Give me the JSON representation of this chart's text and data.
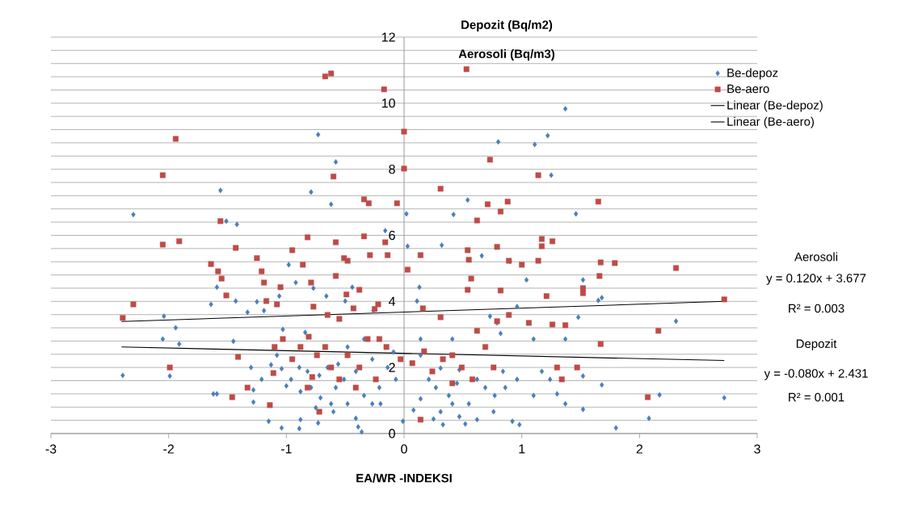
{
  "chart_data": {
    "type": "scatter",
    "title": "Depozit (Bq/m2)",
    "subtitle": "Aerosoli (Bq/m3)",
    "xlabel": "EA/WR -INDEKSI",
    "annotations": [
      "Aerosoli",
      "y = 0.120x + 3.677",
      "R² = 0.003",
      "Depozit",
      "y = -0.080x + 2.431",
      "R² = 0.001"
    ],
    "xlim": [
      -3,
      3
    ],
    "ylim": [
      0,
      12
    ],
    "xticks": [
      -3,
      -2,
      -1,
      0,
      1,
      2,
      3
    ],
    "yticks": [
      0,
      {
        "value": 0.4,
        "label": null
      },
      {
        "value": 0.8,
        "label": null
      },
      {
        "value": 1.2,
        "label": null
      },
      {
        "value": 1.6,
        "label": null
      },
      2,
      {
        "value": 2.4,
        "label": null
      },
      {
        "value": 2.8,
        "label": null
      },
      {
        "value": 3.2,
        "label": null
      },
      {
        "value": 3.6,
        "label": null
      },
      4,
      {
        "value": 4.4,
        "label": null
      },
      {
        "value": 4.8,
        "label": null
      },
      {
        "value": 5.2,
        "label": null
      },
      {
        "value": 5.6,
        "label": null
      },
      6,
      {
        "value": 6.4,
        "label": null
      },
      {
        "value": 6.8,
        "label": null
      },
      {
        "value": 7.2,
        "label": null
      },
      {
        "value": 7.6,
        "label": null
      },
      8,
      {
        "value": 8.4,
        "label": null
      },
      {
        "value": 8.8,
        "label": null
      },
      {
        "value": 9.2,
        "label": null
      },
      {
        "value": 9.6,
        "label": null
      },
      10,
      {
        "value": 10.4,
        "label": null
      },
      {
        "value": 10.8,
        "label": null
      },
      {
        "value": 11.2,
        "label": null
      },
      {
        "value": 11.6,
        "label": null
      },
      12
    ],
    "grid": "y",
    "legend": "right",
    "series": [
      {
        "name": "Be-depoz",
        "marker": "diamond",
        "color": "#4a7ebb",
        "x": [
          -2.39,
          -2.3,
          -2.05,
          -2.04,
          -1.99,
          -1.94,
          -1.91,
          -1.64,
          -1.59,
          -1.62,
          -1.59,
          -1.56,
          -1.51,
          -1.42,
          -1.43,
          -1.45,
          -1.33,
          -1.28,
          -1.28,
          -1.25,
          -1.19,
          -1.15,
          -1.08,
          -1.04,
          -1.06,
          -1.03,
          -1.04,
          -0.98,
          -0.92,
          -0.89,
          -0.88,
          -0.88,
          -0.84,
          -0.77,
          -0.73,
          -0.79,
          -0.73,
          -0.71,
          -0.66,
          -0.62,
          -0.6,
          -0.58,
          -0.56,
          -0.5,
          -0.44,
          -0.39,
          -0.41,
          -0.36,
          -0.26,
          -0.2,
          -0.16,
          -0.09,
          -0.01,
          0.02,
          0.03,
          0.08,
          0.11,
          0.13,
          0.14,
          0.32,
          0.33,
          0.25,
          0.31,
          0.42,
          0.47,
          0.47,
          0.52,
          0.54,
          0.66,
          0.73,
          0.77,
          0.8,
          0.84,
          0.82,
          0.9,
          0.92,
          0.98,
          1.04,
          1.11,
          1.22,
          1.25,
          1.3,
          1.37,
          1.46,
          1.48,
          1.52,
          1.52,
          1.52,
          1.65,
          1.68,
          1.68,
          1.8,
          2.08,
          2.17,
          2.31,
          2.72,
          -0.96,
          -0.82,
          -0.72,
          -0.65,
          -0.58,
          -0.51,
          -0.41,
          -0.34,
          -0.27,
          -0.21,
          -0.48,
          -0.62,
          -0.75,
          -0.79,
          -0.89,
          -1.0,
          -1.13,
          -1.21,
          -1.3,
          -0.48,
          -0.34,
          -0.27,
          -0.14,
          -0.07,
          0.14,
          0.21,
          0.27,
          0.38,
          0.45,
          0.55,
          0.62,
          0.69,
          0.76,
          0.86,
          0.96,
          1.1,
          1.17,
          1.24,
          1.37,
          0.31,
          0.41,
          0.62,
          1.37,
          1.1,
          0.96,
          0.79,
          0.41,
          0.14
        ],
        "values": [
          1.76,
          6.63,
          2.86,
          3.55,
          1.74,
          3.2,
          2.71,
          3.91,
          1.2,
          1.2,
          4.43,
          7.36,
          6.43,
          6.33,
          4.01,
          2.79,
          3.67,
          0.95,
          1.32,
          3.99,
          3.72,
          0.37,
          2.37,
          0.17,
          4.16,
          3.15,
          1.96,
          5.11,
          4.57,
          0.15,
          0.42,
          1.27,
          3.06,
          4.4,
          9.05,
          7.31,
          0.32,
          1.08,
          4.16,
          6.94,
          0.66,
          8.22,
          2.1,
          4.01,
          4.43,
          0.2,
          0.46,
          0.05,
          3.72,
          0.9,
          6.14,
          2.47,
          0.37,
          6.65,
          5.67,
          0.71,
          4.01,
          4.43,
          1.05,
          5.7,
          0.27,
          0.44,
          1.98,
          6.63,
          1.93,
          0.51,
          0.29,
          7.07,
          5.38,
          3.55,
          1.15,
          8.83,
          1.88,
          3.03,
          5.21,
          0.37,
          0.27,
          4.65,
          8.75,
          9.02,
          7.82,
          1.2,
          9.83,
          6.65,
          3.52,
          4.65,
          1.74,
          0.73,
          4.03,
          4.11,
          1.47,
          0.17,
          0.46,
          1.17,
          3.4,
          1.08,
          1.64,
          1.88,
          1.76,
          2.0,
          1.39,
          1.64,
          1.88,
          1.15,
          0.9,
          1.39,
          0.9,
          0.9,
          0.78,
          1.39,
          2.0,
          1.44,
          2.08,
          1.64,
          2.0,
          2.62,
          2.86,
          2.25,
          2.0,
          1.64,
          2.37,
          1.64,
          1.39,
          1.15,
          1.52,
          0.9,
          1.64,
          1.39,
          0.66,
          1.39,
          1.64,
          1.15,
          1.88,
          1.64,
          0.9,
          0.66,
          0.9,
          0.42,
          2.86,
          2.86,
          3.84,
          3.35,
          2.86,
          2.86
        ]
      },
      {
        "name": "Be-aero",
        "marker": "square",
        "color": "#be4b48",
        "x": [
          -2.39,
          -2.3,
          -1.94,
          -2.05,
          -2.05,
          -1.91,
          -1.99,
          -1.64,
          -1.58,
          -1.55,
          -1.56,
          -1.51,
          -1.43,
          -1.41,
          -1.46,
          -1.33,
          -1.25,
          -1.21,
          -1.19,
          -1.17,
          -1.08,
          -1.05,
          -1.14,
          -1.1,
          -1.11,
          -0.95,
          -0.86,
          -0.82,
          -0.81,
          -0.79,
          -0.77,
          -0.78,
          -0.67,
          -0.62,
          -0.6,
          -0.58,
          -0.58,
          -0.51,
          -0.48,
          -0.49,
          -0.43,
          -0.38,
          -0.34,
          -0.3,
          -0.34,
          -0.29,
          -0.25,
          -0.22,
          -0.16,
          -0.14,
          -0.06,
          -0.17,
          0.0,
          0.0,
          0.03,
          0.14,
          0.16,
          0.31,
          0.31,
          0.53,
          0.54,
          0.55,
          0.57,
          0.54,
          0.62,
          0.71,
          0.73,
          0.82,
          0.88,
          0.79,
          0.79,
          0.89,
          0.82,
          1.0,
          1.14,
          1.17,
          1.17,
          1.14,
          1.26,
          1.21,
          1.26,
          1.37,
          1.52,
          1.52,
          1.47,
          1.66,
          1.67,
          1.65,
          1.79,
          1.67,
          2.16,
          2.07,
          2.31,
          2.72,
          -1.03,
          -0.95,
          -0.88,
          -0.74,
          -0.67,
          -0.62,
          -0.55,
          -0.48,
          -0.38,
          -0.31,
          -0.24,
          -0.15,
          -0.03,
          0.07,
          0.17,
          0.24,
          0.33,
          0.41,
          0.49,
          0.58,
          0.69,
          0.76,
          0.89,
          1.06,
          1.3,
          1.34,
          -0.65,
          -0.55,
          -0.82,
          -0.72,
          -0.41,
          -0.21,
          0.14,
          0.41,
          0.62
        ],
        "values": [
          3.5,
          3.91,
          8.92,
          7.82,
          5.72,
          5.82,
          2.0,
          5.13,
          4.91,
          4.69,
          6.43,
          4.18,
          5.62,
          2.32,
          1.1,
          1.39,
          5.31,
          4.91,
          4.57,
          4.01,
          3.91,
          4.43,
          0.86,
          2.62,
          1.83,
          5.55,
          5.11,
          5.94,
          2.93,
          4.57,
          3.84,
          1.71,
          10.81,
          10.9,
          7.78,
          5.79,
          4.77,
          5.31,
          5.23,
          4.21,
          3.79,
          4.35,
          7.09,
          6.97,
          5.97,
          5.4,
          3.77,
          3.91,
          5.79,
          5.4,
          6.97,
          10.42,
          9.14,
          8.02,
          4.96,
          5.4,
          3.79,
          7.41,
          3.52,
          11.03,
          5.55,
          5.26,
          4.69,
          4.35,
          6.45,
          6.94,
          8.29,
          6.72,
          7.02,
          5.65,
          3.4,
          5.23,
          4.33,
          5.11,
          7.82,
          5.89,
          5.67,
          5.23,
          5.82,
          4.16,
          3.3,
          3.28,
          4.25,
          4.4,
          2.0,
          4.77,
          5.18,
          7.02,
          5.16,
          2.71,
          3.11,
          1.1,
          5.01,
          4.06,
          2.86,
          2.25,
          2.62,
          2.37,
          2.62,
          2.0,
          1.64,
          2.37,
          2.0,
          2.86,
          1.64,
          2.62,
          2.25,
          2.13,
          2.49,
          1.88,
          2.25,
          2.37,
          2.0,
          1.64,
          2.62,
          2.0,
          3.59,
          3.35,
          2.0,
          1.64,
          3.59,
          3.47,
          1.39,
          0.66,
          1.39,
          2.86,
          0.42,
          1.52,
          3.11
        ]
      },
      {
        "name": "Linear (Be-depoz)",
        "type": "line",
        "color": "#000000",
        "x": [
          -2.4,
          2.72
        ],
        "values": [
          2.62,
          2.21
        ]
      },
      {
        "name": "Linear (Be-aero)",
        "type": "line",
        "color": "#000000",
        "x": [
          -2.4,
          2.72
        ],
        "values": [
          3.39,
          4.0
        ]
      }
    ]
  }
}
